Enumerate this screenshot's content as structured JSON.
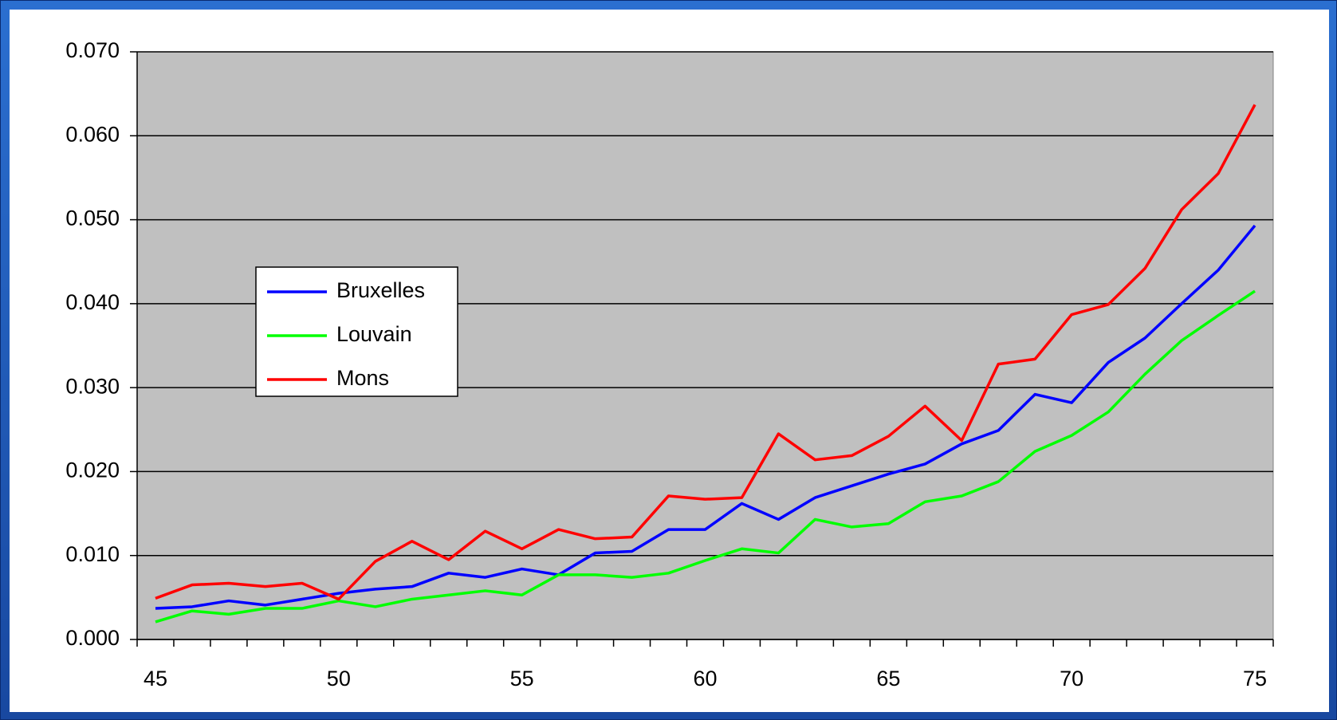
{
  "chart_data": {
    "type": "line",
    "categories": [
      45,
      null,
      null,
      null,
      null,
      50,
      null,
      null,
      null,
      null,
      55,
      null,
      null,
      null,
      null,
      60,
      null,
      null,
      null,
      null,
      65,
      null,
      null,
      null,
      null,
      70,
      null,
      null,
      null,
      null,
      75
    ],
    "series": [
      {
        "name": "Bruxelles",
        "color": "#0000ff",
        "values": [
          0.0037,
          0.0039,
          0.0046,
          0.0041,
          0.0048,
          0.0055,
          0.006,
          0.0063,
          0.0079,
          0.0074,
          0.0084,
          0.0077,
          0.0103,
          0.0105,
          0.0131,
          0.0131,
          0.0162,
          0.0143,
          0.0169,
          0.0183,
          0.0197,
          0.0209,
          0.0233,
          0.0249,
          0.0292,
          0.0282,
          0.033,
          0.0359,
          0.04,
          0.044,
          0.0493
        ]
      },
      {
        "name": "Louvain",
        "color": "#00ff00",
        "values": [
          0.0021,
          0.0034,
          0.003,
          0.0037,
          0.0037,
          0.0046,
          0.0039,
          0.0048,
          0.0053,
          0.0058,
          0.0053,
          0.0077,
          0.0077,
          0.0074,
          0.0079,
          0.0094,
          0.0108,
          0.0103,
          0.0143,
          0.0134,
          0.0138,
          0.0164,
          0.0171,
          0.0188,
          0.0224,
          0.0243,
          0.0271,
          0.0316,
          0.0356,
          0.0386,
          0.0415
        ]
      },
      {
        "name": "Mons",
        "color": "#ff0000",
        "values": [
          0.0049,
          0.0065,
          0.0067,
          0.0063,
          0.0067,
          0.0048,
          0.0093,
          0.0117,
          0.0095,
          0.0129,
          0.0108,
          0.0131,
          0.012,
          0.0122,
          0.0171,
          0.0167,
          0.0169,
          0.0245,
          0.0214,
          0.0219,
          0.0242,
          0.0278,
          0.0237,
          0.0328,
          0.0334,
          0.0387,
          0.0399,
          0.0442,
          0.0512,
          0.0555,
          0.0637
        ]
      }
    ],
    "ylim": [
      0,
      0.07
    ],
    "yticks": [
      {
        "value": 0,
        "label": "0.000"
      },
      {
        "value": 0.01,
        "label": "0.010"
      },
      {
        "value": 0.02,
        "label": "0.020"
      },
      {
        "value": 0.03,
        "label": "0.030"
      },
      {
        "value": 0.04,
        "label": "0.040"
      },
      {
        "value": 0.05,
        "label": "0.050"
      },
      {
        "value": 0.06,
        "label": "0.060"
      },
      {
        "value": 0.07,
        "label": "0.070"
      }
    ],
    "grid": true,
    "plot_background": "#c0c0c0"
  }
}
